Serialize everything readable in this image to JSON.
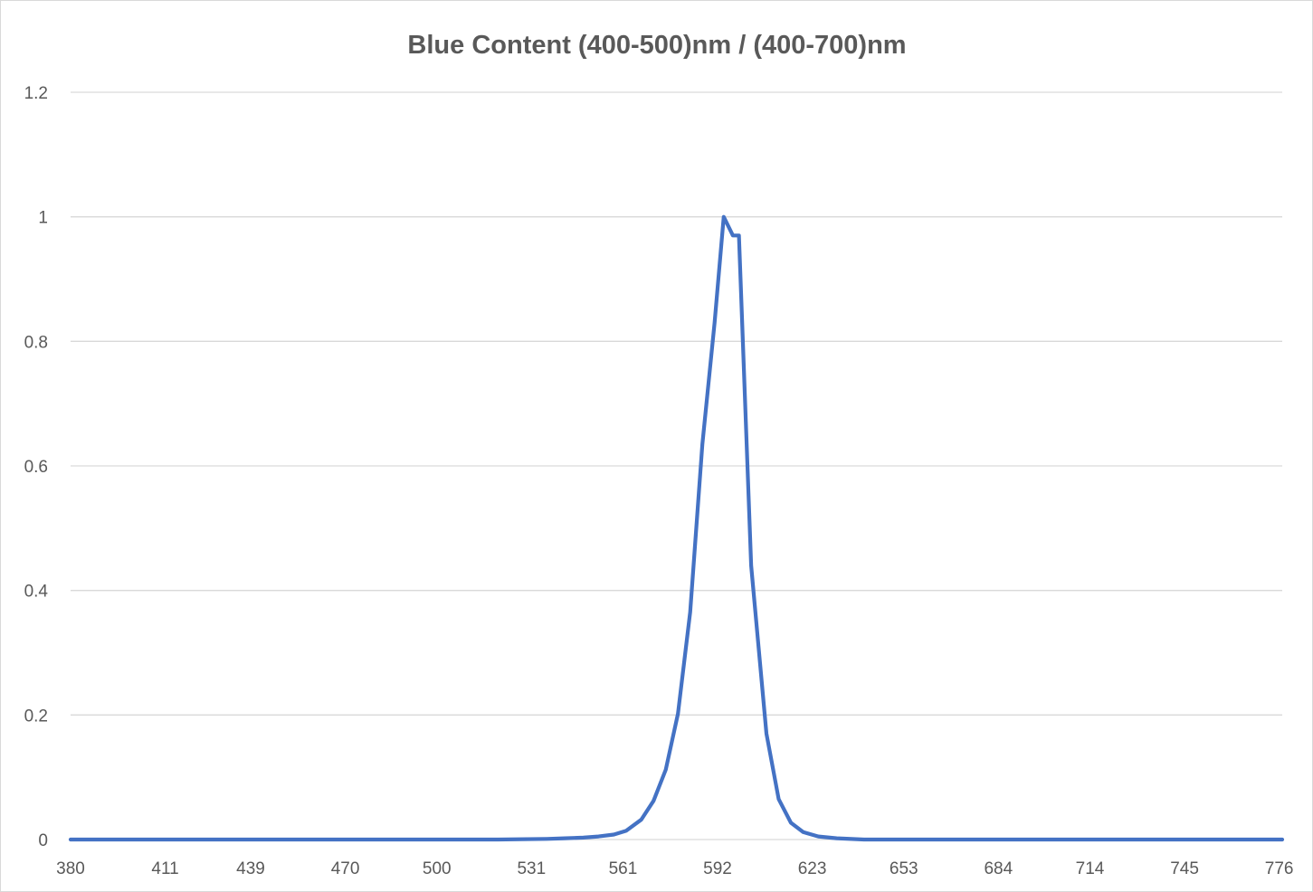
{
  "chart_data": {
    "type": "line",
    "title": "Blue Content (400-500)nm / (400-700)nm",
    "xlabel": "",
    "ylabel": "",
    "ylim": [
      0,
      1.2
    ],
    "yticks": [
      "0",
      "0.2",
      "0.4",
      "0.6",
      "0.8",
      "1",
      "1.2"
    ],
    "xticks": [
      "380",
      "411",
      "439",
      "470",
      "500",
      "531",
      "561",
      "592",
      "623",
      "653",
      "684",
      "714",
      "745",
      "776"
    ],
    "grid": true,
    "legend": "none",
    "series": [
      {
        "color": "#4472c4",
        "points": [
          [
            380,
            0
          ],
          [
            400,
            0
          ],
          [
            420,
            0
          ],
          [
            440,
            0
          ],
          [
            460,
            0
          ],
          [
            480,
            0
          ],
          [
            500,
            0
          ],
          [
            520,
            0
          ],
          [
            536,
            0.001
          ],
          [
            542,
            0.002
          ],
          [
            548,
            0.003
          ],
          [
            553,
            0.005
          ],
          [
            558,
            0.008
          ],
          [
            562,
            0.014
          ],
          [
            567,
            0.032
          ],
          [
            571,
            0.062
          ],
          [
            575,
            0.112
          ],
          [
            579,
            0.202
          ],
          [
            583,
            0.365
          ],
          [
            587,
            0.635
          ],
          [
            591,
            0.83
          ],
          [
            594,
            1.0
          ],
          [
            597,
            0.97
          ],
          [
            599,
            0.97
          ],
          [
            603,
            0.44
          ],
          [
            608,
            0.17
          ],
          [
            612,
            0.065
          ],
          [
            616,
            0.027
          ],
          [
            620,
            0.012
          ],
          [
            625,
            0.005
          ],
          [
            631,
            0.002
          ],
          [
            640,
            0
          ],
          [
            660,
            0
          ],
          [
            680,
            0
          ],
          [
            700,
            0
          ],
          [
            720,
            0
          ],
          [
            740,
            0
          ],
          [
            760,
            0
          ],
          [
            777,
            0
          ]
        ]
      }
    ]
  }
}
